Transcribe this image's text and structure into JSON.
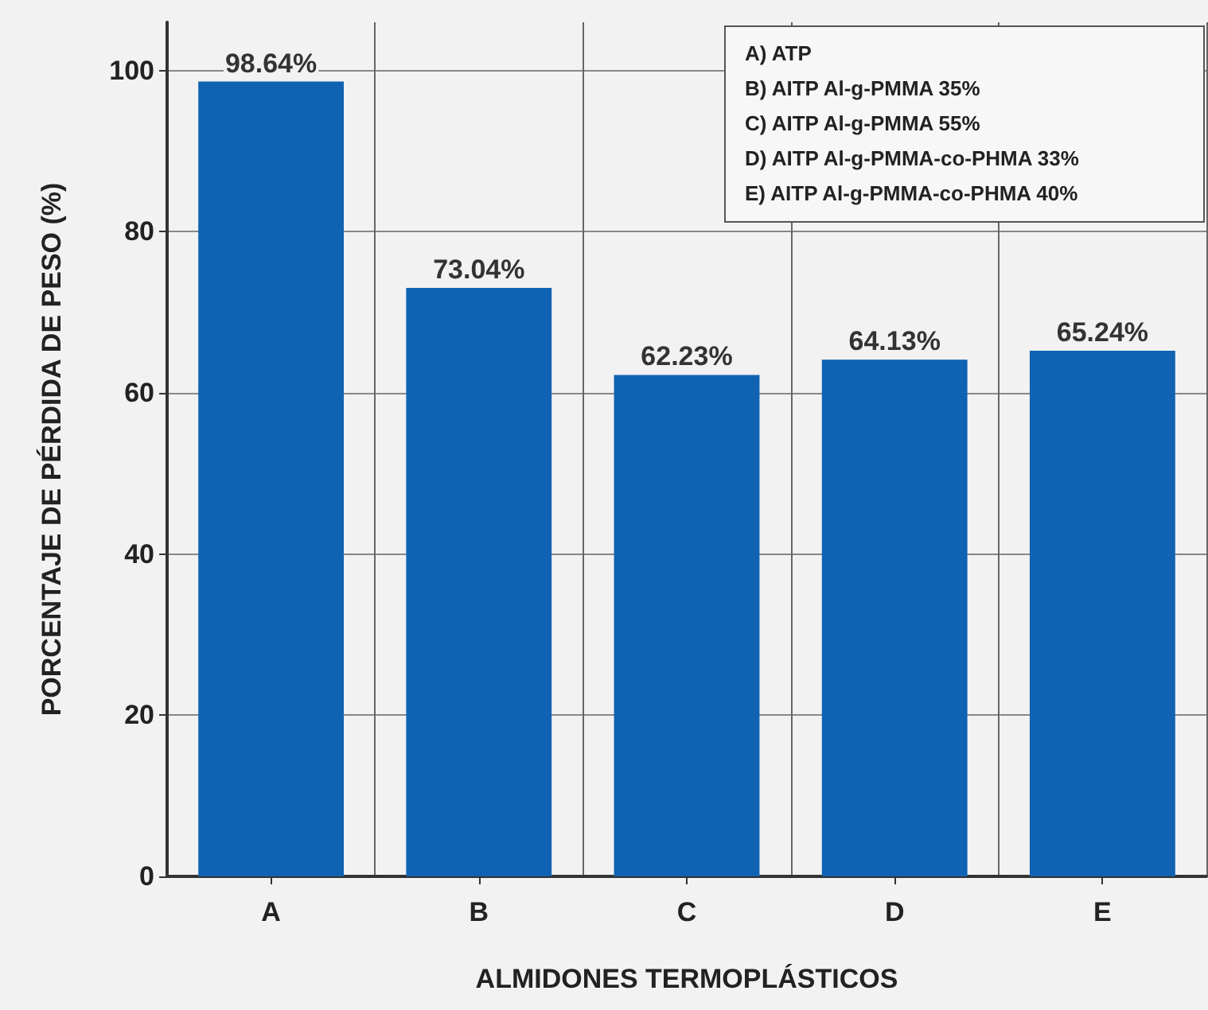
{
  "chart_data": {
    "type": "bar",
    "xlabel": "ALMIDONES TERMOPLÁSTICOS",
    "ylabel": "PORCENTAJE DE PÉRDIDA DE PESO (%)",
    "categories": [
      "A",
      "B",
      "C",
      "D",
      "E"
    ],
    "values": [
      98.64,
      73.04,
      62.23,
      64.13,
      65.24
    ],
    "value_labels": [
      "98.64%",
      "73.04%",
      "62.23%",
      "64.13%",
      "65.24%"
    ],
    "color": "#1063b3",
    "ylim": [
      0,
      106
    ],
    "yticks": [
      0,
      20,
      40,
      60,
      80,
      100
    ],
    "grid": true,
    "annotations": [
      "A) ATP",
      "B) AITP Al-g-PMMA 35%",
      "C) AITP Al-g-PMMA 55%",
      "D) AITP Al-g-PMMA-co-PHMA 33%",
      "E) AITP Al-g-PMMA-co-PHMA 40%"
    ]
  }
}
